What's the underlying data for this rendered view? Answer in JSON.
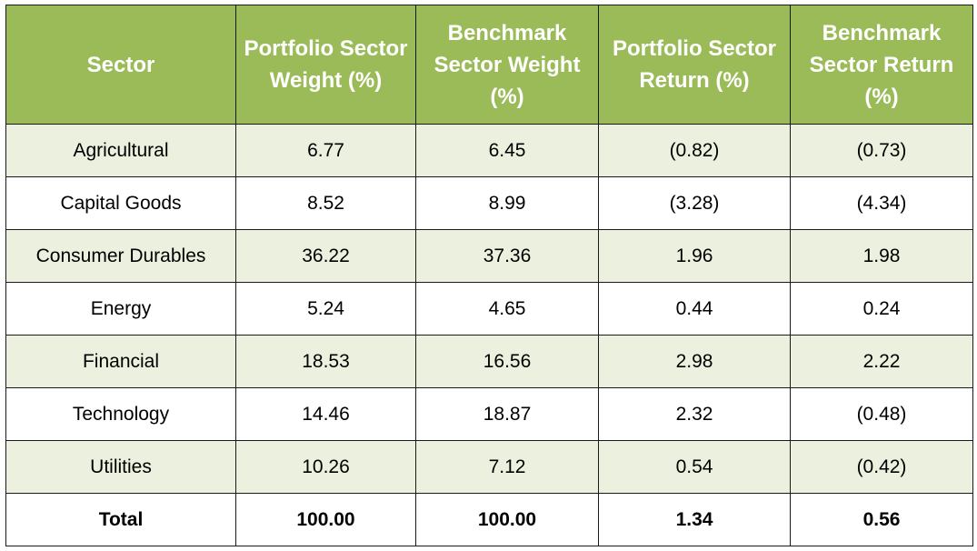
{
  "table": {
    "headers": [
      "Sector",
      "Portfolio Sector Weight (%)",
      "Benchmark Sector Weight (%)",
      "Portfolio Sector Return (%)",
      "Benchmark Sector Return (%)"
    ],
    "rows": [
      [
        "Agricultural",
        "6.77",
        "6.45",
        "(0.82)",
        "(0.73)"
      ],
      [
        "Capital Goods",
        "8.52",
        "8.99",
        "(3.28)",
        "(4.34)"
      ],
      [
        "Consumer Durables",
        "36.22",
        "37.36",
        "1.96",
        "1.98"
      ],
      [
        "Energy",
        "5.24",
        "4.65",
        "0.44",
        "0.24"
      ],
      [
        "Financial",
        "18.53",
        "16.56",
        "2.98",
        "2.22"
      ],
      [
        "Technology",
        "14.46",
        "18.87",
        "2.32",
        "(0.48)"
      ],
      [
        "Utilities",
        "10.26",
        "7.12",
        "0.54",
        "(0.42)"
      ]
    ],
    "total": [
      "Total",
      "100.00",
      "100.00",
      "1.34",
      "0.56"
    ]
  },
  "colors": {
    "header_bg": "#9bbb59",
    "header_text": "#ffffff",
    "shaded_row_bg": "#ebf1de",
    "plain_row_bg": "#ffffff"
  }
}
